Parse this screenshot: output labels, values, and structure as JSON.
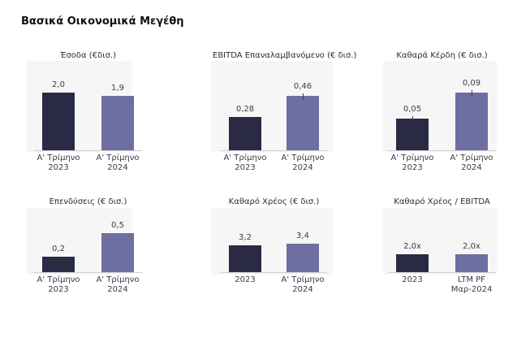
{
  "page_title": "Βασικά Οικονομικά Μεγέθη",
  "colors": {
    "bar_2023": "#2a2a44",
    "bar_2024": "#6e6ea3",
    "panel_bg": "#f6f6f7"
  },
  "chart_data": [
    {
      "type": "bar",
      "title": "Έσοδα (€δισ.)",
      "categories": [
        "Α' Τρίμηνο\n2023",
        "Α' Τρίμηνο\n2024"
      ],
      "values": [
        2.0,
        1.9
      ],
      "labels": [
        "2,0",
        "1,9"
      ],
      "ylim": [
        0,
        2.4
      ],
      "error_tick": [
        false,
        false
      ]
    },
    {
      "type": "bar",
      "title": "EBITDA Επαναλαμβανόμενο (€ δισ.)",
      "categories": [
        "Α' Τρίμηνο\n2023",
        "Α' Τρίμηνο\n2024"
      ],
      "values": [
        0.28,
        0.46
      ],
      "labels": [
        "0,28",
        "0,46"
      ],
      "ylim": [
        0,
        0.55
      ],
      "error_tick": [
        false,
        true
      ]
    },
    {
      "type": "bar",
      "title": "Καθαρά Κέρδη (€ δισ.)",
      "categories": [
        "Α' Τρίμηνο\n2023",
        "Α' Τρίμηνο\n2024"
      ],
      "values": [
        0.05,
        0.09
      ],
      "labels": [
        "0,05",
        "0,09"
      ],
      "ylim": [
        0,
        0.108
      ],
      "error_tick": [
        true,
        true
      ]
    },
    {
      "type": "bar",
      "title": "Επενδύσεις (€ δισ.)",
      "categories": [
        "Α' Τρίμηνο\n2023",
        "Α' Τρίμηνο\n2024"
      ],
      "values": [
        0.2,
        0.5
      ],
      "labels": [
        "0,2",
        "0,5"
      ],
      "ylim": [
        0,
        0.6
      ],
      "error_tick": [
        false,
        false
      ]
    },
    {
      "type": "bar",
      "title": "Καθαρό Χρέος (€ δισ.)",
      "categories": [
        "2023",
        "Α' Τρίμηνο\n2024"
      ],
      "values": [
        3.2,
        3.4
      ],
      "labels": [
        "3,2",
        "3,4"
      ],
      "ylim": [
        0,
        5.5
      ],
      "error_tick": [
        false,
        false
      ]
    },
    {
      "type": "bar",
      "title": "Καθαρό Χρέος / EBITDA",
      "categories": [
        "2023",
        "LTM PF\nΜαρ-2024"
      ],
      "values": [
        2.0,
        2.0
      ],
      "labels": [
        "2,0x",
        "2,0x"
      ],
      "ylim": [
        0,
        4.8
      ],
      "error_tick": [
        false,
        false
      ]
    }
  ]
}
